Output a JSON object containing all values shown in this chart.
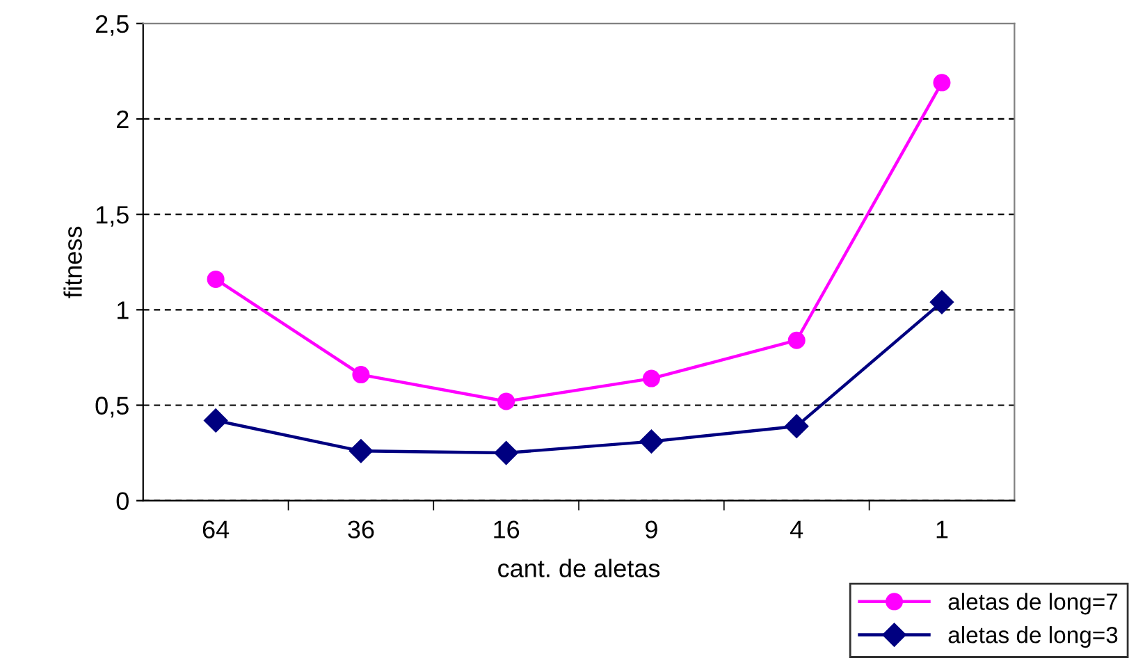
{
  "chart_data": {
    "type": "line",
    "xlabel": "cant. de aletas",
    "ylabel": "fitness",
    "categories": [
      "64",
      "36",
      "16",
      "9",
      "4",
      "1"
    ],
    "series": [
      {
        "name": "aletas de long=7",
        "color": "#ff00ff",
        "marker": "circle",
        "values": [
          1.16,
          0.66,
          0.52,
          0.64,
          0.84,
          2.19
        ]
      },
      {
        "name": "aletas de long=3",
        "color": "#000080",
        "marker": "diamond",
        "values": [
          0.42,
          0.26,
          0.25,
          0.31,
          0.39,
          1.04
        ]
      }
    ],
    "ylim": [
      0,
      2.5
    ],
    "yticks": [
      {
        "value": 0,
        "label": "0"
      },
      {
        "value": 0.5,
        "label": "0,5"
      },
      {
        "value": 1,
        "label": "1"
      },
      {
        "value": 1.5,
        "label": "1,5"
      },
      {
        "value": 2,
        "label": "2"
      },
      {
        "value": 2.5,
        "label": "2,5"
      }
    ],
    "grid": "y",
    "legend": "bottom right"
  }
}
